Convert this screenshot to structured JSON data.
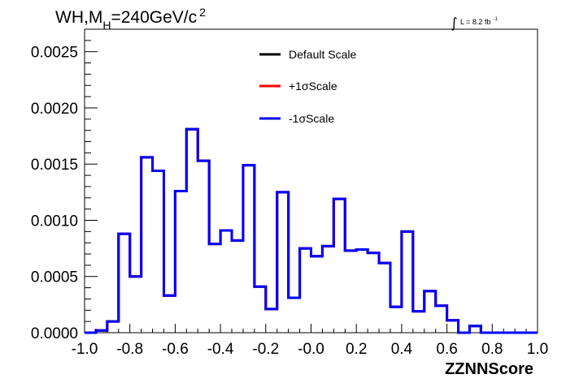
{
  "chart_data": {
    "type": "line",
    "style": "step-histogram",
    "title": {
      "main": "WH,M",
      "sub": "H",
      "rest": "=240GeV/c",
      "sup": "2"
    },
    "lumi": {
      "integral": "∫",
      "text": "L = 8.2 fb",
      "sup": "-1"
    },
    "xlabel": "ZZNNScore",
    "ylabel": "",
    "xlim": [
      -1.0,
      1.0
    ],
    "ylim": [
      0.0,
      0.0027
    ],
    "x_ticks": [
      "-1.0",
      "-0.8",
      "-0.6",
      "-0.4",
      "-0.2",
      "-0.0",
      "0.2",
      "0.4",
      "0.6",
      "0.8",
      "1.0"
    ],
    "y_ticks": [
      "0.0000",
      "0.0005",
      "0.0010",
      "0.0015",
      "0.0020",
      "0.0025"
    ],
    "bin_edges_start": -1.0,
    "bin_width": 0.05,
    "series": [
      {
        "name": "Default Scale",
        "color": "#000000",
        "values": [
          0.0,
          2e-05,
          0.0001,
          0.00088,
          0.0005,
          0.00156,
          0.00144,
          0.00033,
          0.00126,
          0.00181,
          0.00153,
          0.00079,
          0.00091,
          0.00082,
          0.00149,
          0.00041,
          0.00021,
          0.00125,
          0.00031,
          0.00075,
          0.00068,
          0.00077,
          0.00119,
          0.00073,
          0.00074,
          0.00071,
          0.00062,
          0.00023,
          0.0009,
          0.00019,
          0.00037,
          0.00024,
          0.00011,
          0.0,
          6e-05,
          0.0,
          0.0,
          0.0,
          0.0,
          0.0
        ]
      },
      {
        "name": "+1σScale",
        "color": "#ff0000",
        "values": [
          0.0,
          2e-05,
          0.0001,
          0.00088,
          0.0005,
          0.00156,
          0.00144,
          0.00033,
          0.00126,
          0.00181,
          0.00153,
          0.00079,
          0.00091,
          0.00082,
          0.00149,
          0.00041,
          0.00021,
          0.00125,
          0.00031,
          0.00075,
          0.00068,
          0.00077,
          0.00119,
          0.00073,
          0.00074,
          0.00071,
          0.00062,
          0.00023,
          0.0009,
          0.00019,
          0.00037,
          0.00024,
          0.00011,
          0.0,
          6e-05,
          0.0,
          0.0,
          0.0,
          0.0,
          0.0
        ]
      },
      {
        "name": "-1σScale",
        "color": "#0000ff",
        "values": [
          0.0,
          2e-05,
          0.0001,
          0.00088,
          0.0005,
          0.00156,
          0.00144,
          0.00033,
          0.00126,
          0.00181,
          0.00153,
          0.00079,
          0.00091,
          0.00082,
          0.00149,
          0.00041,
          0.00021,
          0.00125,
          0.00031,
          0.00075,
          0.00068,
          0.00077,
          0.00119,
          0.00073,
          0.00074,
          0.00071,
          0.00062,
          0.00023,
          0.0009,
          0.00019,
          0.00037,
          0.00024,
          0.00011,
          0.0,
          6e-05,
          0.0,
          0.0,
          0.0,
          0.0,
          0.0
        ]
      }
    ],
    "legend": {
      "placement": "top-center",
      "entries": [
        "Default Scale",
        "+1σScale",
        "-1σScale"
      ]
    },
    "grid": false
  }
}
